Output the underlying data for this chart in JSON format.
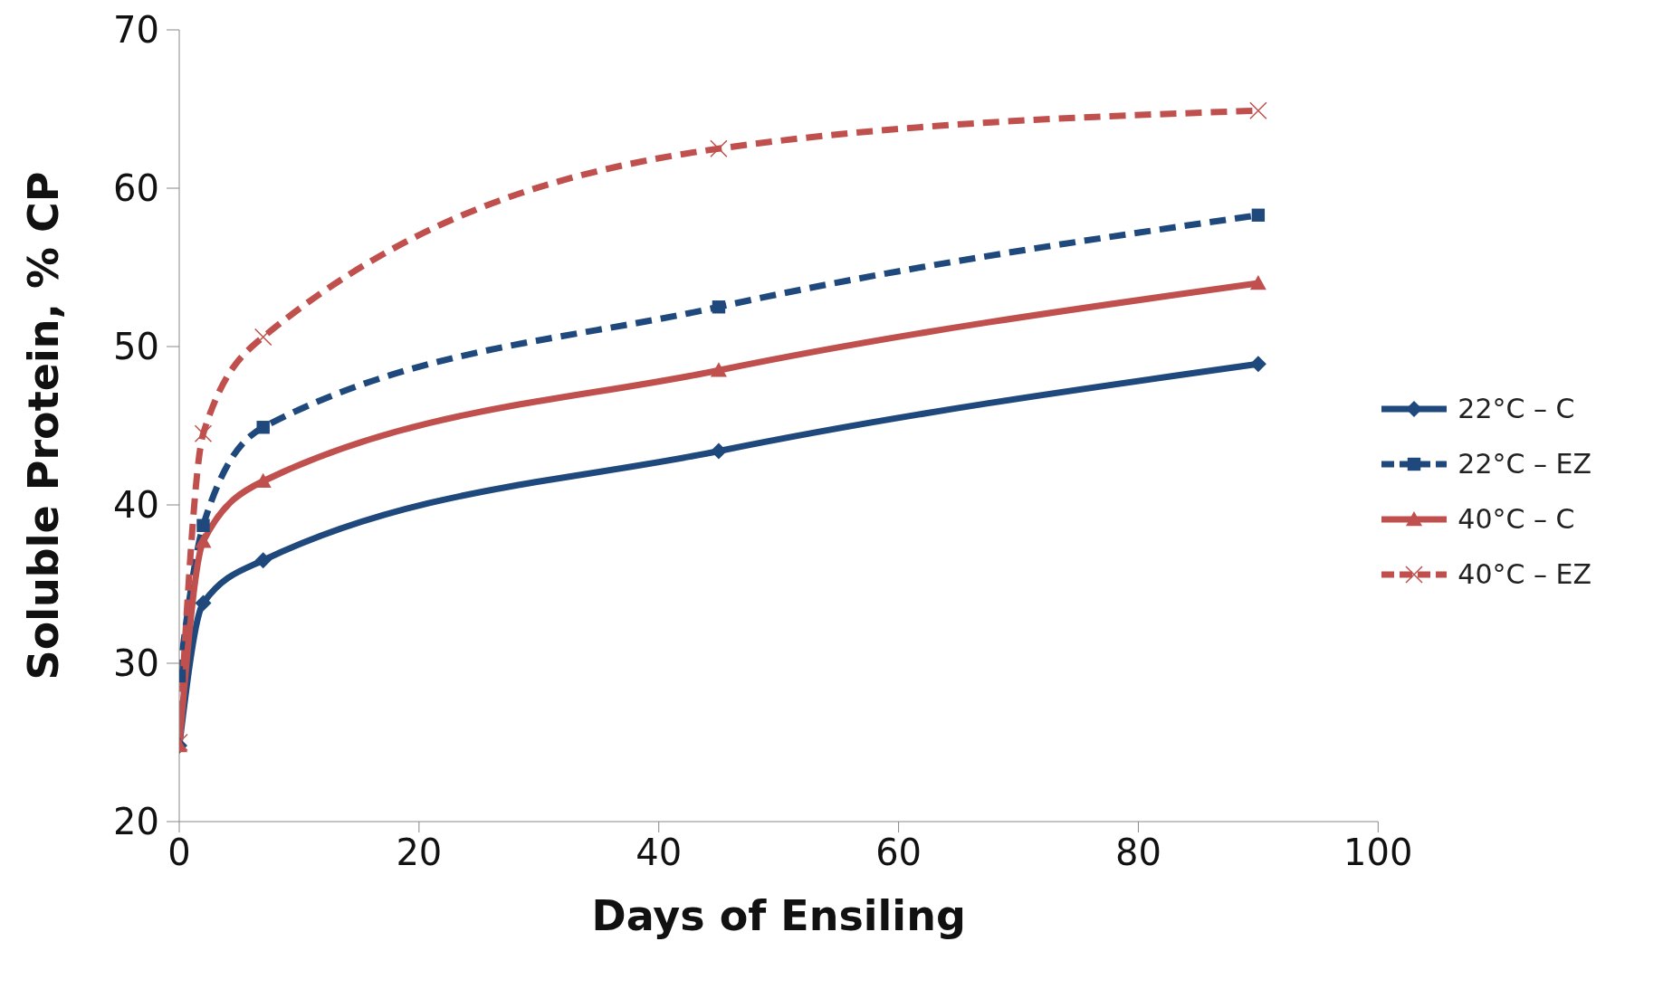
{
  "chart_data": {
    "type": "line",
    "xlabel": "Days of Ensiling",
    "ylabel": "Soluble Protein, % CP",
    "xlim": [
      0,
      100
    ],
    "xticks": [
      0,
      20,
      40,
      60,
      80,
      100
    ],
    "ylim": [
      20,
      70
    ],
    "yticks": [
      20,
      30,
      40,
      50,
      60,
      70
    ],
    "grid": false,
    "legend": "right",
    "series": [
      {
        "name": "22°C – C",
        "color": "#1f497d",
        "marker": "diamond",
        "line_style": "solid",
        "x": [
          0,
          2,
          7,
          45,
          90
        ],
        "values": [
          24.8,
          33.8,
          36.5,
          43.4,
          48.9
        ]
      },
      {
        "name": "22°C – EZ",
        "color": "#1f497d",
        "marker": "square",
        "line_style": "dashed",
        "x": [
          0,
          2,
          7,
          45,
          90
        ],
        "values": [
          29.2,
          38.7,
          44.9,
          52.5,
          58.3
        ]
      },
      {
        "name": "40°C – C",
        "color": "#c0504d",
        "marker": "triangle",
        "line_style": "solid",
        "x": [
          0,
          2,
          7,
          45,
          90
        ],
        "values": [
          24.8,
          37.7,
          41.5,
          48.5,
          54.0
        ]
      },
      {
        "name": "40°C – EZ",
        "color": "#c0504d",
        "marker": "cross",
        "line_style": "dashed",
        "x": [
          0,
          2,
          7,
          45,
          90
        ],
        "values": [
          25.0,
          44.5,
          50.6,
          62.5,
          64.9
        ]
      }
    ]
  }
}
